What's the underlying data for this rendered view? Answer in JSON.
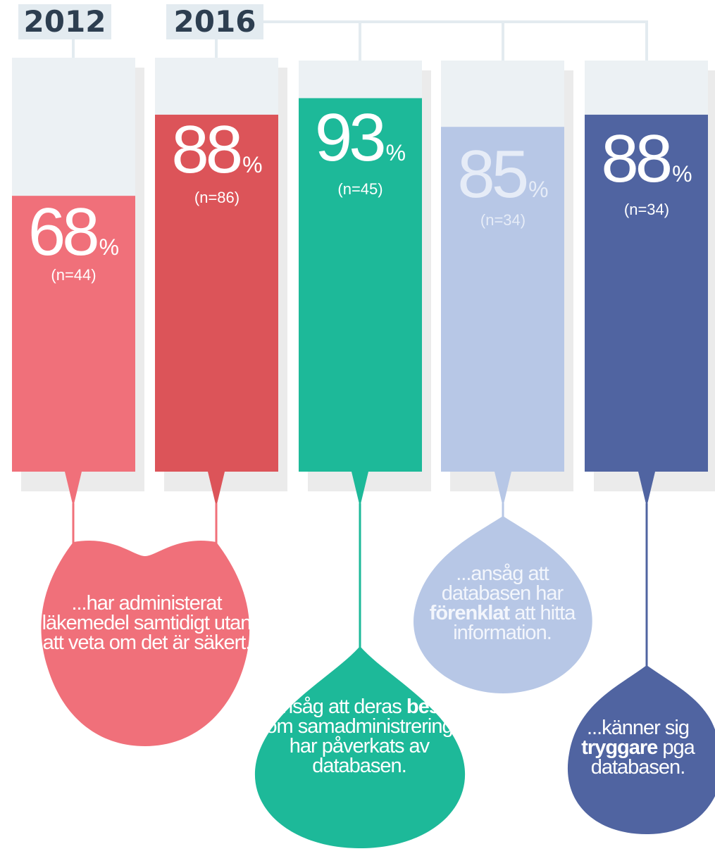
{
  "years": [
    "2012",
    "2016"
  ],
  "chart_data": {
    "type": "bar",
    "ylim": [
      0,
      100
    ],
    "unit": "%",
    "categories": [
      "...har administerat läkemedel samtidigt utan att veta om det är säkert.",
      "...har administerat läkemedel samtidigt utan att veta om det är säkert.",
      "...ansåg att deras beslut om samadministrering har påverkats av databasen.",
      "...ansåg att databasen har förenklat att hitta information.",
      "...känner sig tryggare pga databasen."
    ],
    "bars": [
      {
        "year": "2012",
        "value": 68,
        "n": "(n=44)",
        "color": "#f0707a"
      },
      {
        "year": "2016",
        "value": 88,
        "n": "(n=86)",
        "color": "#dc5459"
      },
      {
        "year": "2016",
        "value": 93,
        "n": "(n=45)",
        "color": "#1db999"
      },
      {
        "year": "2016",
        "value": 85,
        "n": "(n=34)",
        "color": "#b7c7e6"
      },
      {
        "year": "2016",
        "value": 88,
        "n": "(n=34)",
        "color": "#5064a1"
      }
    ]
  },
  "captions": [
    {
      "before": "...har administerat läkemedel samtidigt utan att veta om det är säkert.",
      "bold": "",
      "after": ""
    },
    {
      "before": "...ansåg att deras",
      "bold": "beslut",
      "after": "om samadministrering har påverkats av databasen."
    },
    {
      "before": "...ansåg att databasen har",
      "bold": "förenklat",
      "after": "att hitta information."
    },
    {
      "before": "...känner sig",
      "bold": "tryggare",
      "after": "pga databasen."
    }
  ]
}
